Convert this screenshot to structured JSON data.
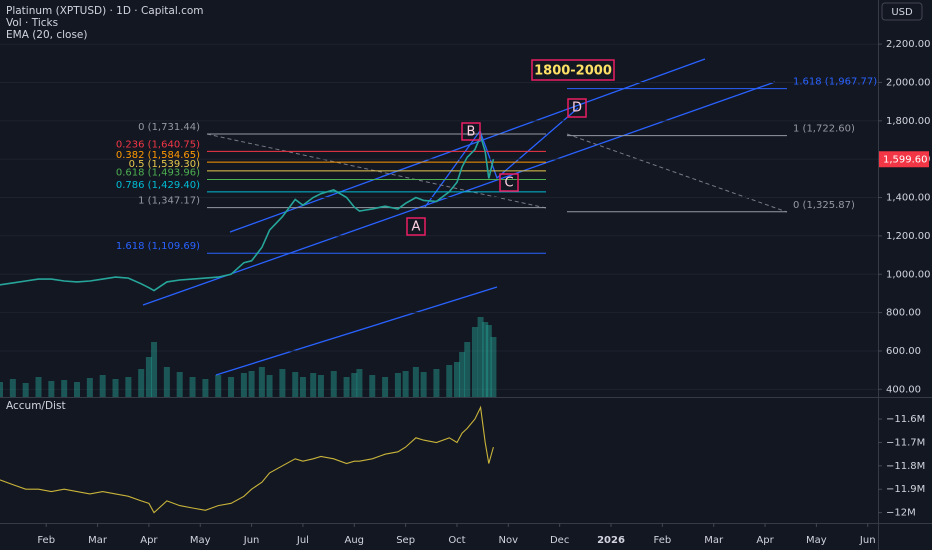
{
  "header": {
    "symbol": "Platinum (XPTUSD) · 1D · Capital.com",
    "volume_label": "Vol · Ticks",
    "ema_label": "EMA (20, close)",
    "currency": "USD"
  },
  "annotations": {
    "target": "1800-2000",
    "a": "A",
    "b": "B",
    "c": "C",
    "d": "D"
  },
  "chart_data": [
    {
      "type": "line",
      "color": "#26a69a",
      "grid": true,
      "x": [
        0.1,
        0.35,
        0.6,
        0.85,
        1.1,
        1.35,
        1.6,
        1.85,
        2.1,
        2.35,
        2.6,
        2.85,
        3.0,
        3.1,
        3.35,
        3.6,
        3.85,
        4.1,
        4.35,
        4.6,
        4.85,
        5.0,
        5.2,
        5.35,
        5.6,
        5.85,
        6.0,
        6.2,
        6.35,
        6.6,
        6.85,
        7.0,
        7.1,
        7.35,
        7.6,
        7.85,
        8.0,
        8.2,
        8.35,
        8.6,
        8.85,
        9.0,
        9.1,
        9.2,
        9.35,
        9.46,
        9.55,
        9.62,
        9.71
      ],
      "values": [
        945,
        955,
        965,
        975,
        975,
        965,
        960,
        965,
        975,
        985,
        980,
        950,
        930,
        915,
        960,
        970,
        975,
        980,
        985,
        1000,
        1060,
        1070,
        1140,
        1230,
        1300,
        1390,
        1360,
        1400,
        1420,
        1440,
        1400,
        1350,
        1330,
        1340,
        1355,
        1340,
        1370,
        1400,
        1385,
        1380,
        1430,
        1480,
        1560,
        1610,
        1650,
        1720,
        1640,
        1500,
        1600
      ],
      "volume": {
        "color": "#26a69a",
        "ylim": [
          0,
          100
        ],
        "values": [
          15,
          18,
          14,
          20,
          16,
          17,
          15,
          19,
          22,
          18,
          20,
          28,
          40,
          55,
          30,
          25,
          20,
          18,
          22,
          20,
          24,
          26,
          30,
          22,
          28,
          25,
          20,
          24,
          22,
          26,
          20,
          24,
          28,
          22,
          20,
          24,
          26,
          30,
          25,
          28,
          32,
          35,
          45,
          55,
          70,
          80,
          75,
          72,
          60
        ]
      },
      "xlim": [
        0.1,
        17.2
      ],
      "ylim": [
        360,
        2430
      ],
      "xticks": [
        {
          "value": 1,
          "label": "Feb"
        },
        {
          "value": 2,
          "label": "Mar"
        },
        {
          "value": 3,
          "label": "Apr"
        },
        {
          "value": 4,
          "label": "May"
        },
        {
          "value": 5,
          "label": "Jun"
        },
        {
          "value": 6,
          "label": "Jul"
        },
        {
          "value": 7,
          "label": "Aug"
        },
        {
          "value": 8,
          "label": "Sep"
        },
        {
          "value": 9,
          "label": "Oct"
        },
        {
          "value": 10,
          "label": "Nov"
        },
        {
          "value": 11,
          "label": "Dec"
        },
        {
          "value": 12,
          "label": "2026"
        },
        {
          "value": 13,
          "label": "Feb"
        },
        {
          "value": 14,
          "label": "Mar"
        },
        {
          "value": 15,
          "label": "Apr"
        },
        {
          "value": 16,
          "label": "May"
        },
        {
          "value": 17,
          "label": "Jun"
        }
      ],
      "yticks": [
        {
          "value": 2200,
          "label": "2,200.00"
        },
        {
          "value": 2000,
          "label": "2,000.00"
        },
        {
          "value": 1800,
          "label": "1,800.00"
        },
        {
          "value": 1600,
          "label": "1,600.00"
        },
        {
          "value": 1400,
          "label": "1,400.00"
        },
        {
          "value": 1200,
          "label": "1,200.00"
        },
        {
          "value": 1000,
          "label": "1,000.00"
        },
        {
          "value": 800,
          "label": "800.00"
        },
        {
          "value": 600,
          "label": "600.00"
        },
        {
          "value": 400,
          "label": "400.00"
        }
      ],
      "last_price": {
        "value": 1599.6,
        "label": "1,599.60",
        "color": "#f23645"
      },
      "fib_left": [
        {
          "label": "0 (1,731.44)",
          "price": 1731.44,
          "color": "#9598a1"
        },
        {
          "label": "0.236 (1,640.75)",
          "price": 1640.75,
          "color": "#f23645"
        },
        {
          "label": "0.382 (1,584.65)",
          "price": 1584.65,
          "color": "#ff9800"
        },
        {
          "label": "0.5 (1,539.30)",
          "price": 1539.3,
          "color": "#e6c84c"
        },
        {
          "label": "0.618 (1,493.96)",
          "price": 1493.96,
          "color": "#4caf50"
        },
        {
          "label": "0.786 (1,429.40)",
          "price": 1429.4,
          "color": "#00bcd4"
        },
        {
          "label": "1 (1,347.17)",
          "price": 1347.17,
          "color": "#9598a1"
        },
        {
          "label": "1.618 (1,109.69)",
          "price": 1109.69,
          "color": "#2962ff"
        }
      ],
      "fib_right": [
        {
          "label": "1.618 (1,967.77)",
          "price": 1967.77,
          "color": "#2962ff"
        },
        {
          "label": "1 (1,722.60)",
          "price": 1722.6,
          "color": "#9598a1"
        },
        {
          "label": "0 (1,325.87)",
          "price": 1325.87,
          "color": "#9598a1"
        }
      ]
    },
    {
      "type": "line",
      "title": "Accum/Dist",
      "color": "#c9b43a",
      "x": [
        0.1,
        0.35,
        0.6,
        0.85,
        1.1,
        1.35,
        1.6,
        1.85,
        2.1,
        2.35,
        2.6,
        2.85,
        3.0,
        3.1,
        3.35,
        3.6,
        3.85,
        4.1,
        4.35,
        4.6,
        4.85,
        5.0,
        5.2,
        5.35,
        5.6,
        5.85,
        6.0,
        6.2,
        6.35,
        6.6,
        6.85,
        7.0,
        7.1,
        7.35,
        7.6,
        7.85,
        8.0,
        8.2,
        8.35,
        8.6,
        8.85,
        9.0,
        9.1,
        9.2,
        9.35,
        9.46,
        9.55,
        9.62,
        9.71
      ],
      "values": [
        -11.86,
        -11.88,
        -11.9,
        -11.9,
        -11.91,
        -11.9,
        -11.91,
        -11.92,
        -11.91,
        -11.92,
        -11.93,
        -11.95,
        -11.96,
        -12.0,
        -11.95,
        -11.97,
        -11.98,
        -11.99,
        -11.97,
        -11.96,
        -11.93,
        -11.9,
        -11.87,
        -11.83,
        -11.8,
        -11.77,
        -11.78,
        -11.77,
        -11.76,
        -11.77,
        -11.79,
        -11.78,
        -11.78,
        -11.77,
        -11.75,
        -11.74,
        -11.72,
        -11.68,
        -11.69,
        -11.7,
        -11.68,
        -11.7,
        -11.66,
        -11.64,
        -11.6,
        -11.55,
        -11.7,
        -11.79,
        -11.72
      ],
      "xlim": [
        0.1,
        17.2
      ],
      "ylim": [
        -12.04,
        -11.51
      ],
      "yticks": [
        {
          "value": -11.6,
          "label": "−11.6M"
        },
        {
          "value": -11.7,
          "label": "−11.7M"
        },
        {
          "value": -11.8,
          "label": "−11.8M"
        },
        {
          "value": -11.9,
          "label": "−11.9M"
        },
        {
          "value": -12,
          "label": "−12M"
        }
      ]
    }
  ]
}
